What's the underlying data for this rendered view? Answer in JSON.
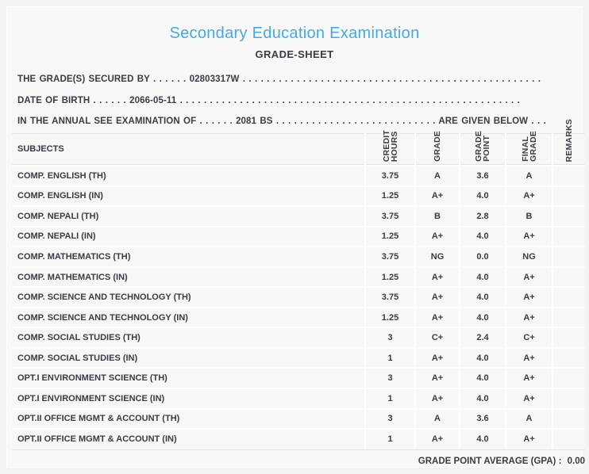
{
  "colors": {
    "accent_title": "#44AAE2",
    "text": "#3B3B42",
    "sheet_background": "#F8F8F9",
    "divider": "#E3E3E4"
  },
  "header": {
    "title": "Secondary Education Examination",
    "subtitle": "GRADE-SHEET"
  },
  "info_lines": [
    {
      "prefix": "THE GRADE(S) SECURED BY",
      "dots_before": ". . . . . .",
      "value": "02803317W",
      "dots_after": ". . . . . . . . . . . . . . . . . . . . . . . . . . . . . . . . . . . . . . . . . . . . . . . . . .",
      "suffix": ""
    },
    {
      "prefix": "DATE OF BIRTH",
      "dots_before": ". . . . . .",
      "value": "2066-05-11",
      "dots_after": ". . . . . . . . . . . . . . . . . . . . . . . . . . . . . . . . . . . . . . . . . . . . . . . . . . . . . . . . .",
      "suffix": ""
    },
    {
      "prefix": "IN THE ANNUAL SEE EXAMINATION OF",
      "dots_before": ". . . . . .",
      "value": "2081 BS",
      "dots_after": ". . . . . . . . . . . . . . . . . . . . . . . . . . .",
      "suffix": "ARE GIVEN BELOW . . ."
    }
  ],
  "table": {
    "headers": {
      "subjects": "SUBJECTS",
      "credit_hours": "CREDIT\nHOURS",
      "grade": "GRADE",
      "grade_point": "GRADE\nPOINT",
      "final_grade": "FINAL\nGRADE",
      "remarks": "REMARKS"
    },
    "rows": [
      {
        "subject": "COMP. ENGLISH (TH)",
        "credit_hours": "3.75",
        "grade": "A",
        "grade_point": "3.6",
        "final_grade": "A",
        "remarks": ""
      },
      {
        "subject": "COMP. ENGLISH (IN)",
        "credit_hours": "1.25",
        "grade": "A+",
        "grade_point": "4.0",
        "final_grade": "A+",
        "remarks": ""
      },
      {
        "subject": "COMP. NEPALI (TH)",
        "credit_hours": "3.75",
        "grade": "B",
        "grade_point": "2.8",
        "final_grade": "B",
        "remarks": ""
      },
      {
        "subject": "COMP. NEPALI (IN)",
        "credit_hours": "1.25",
        "grade": "A+",
        "grade_point": "4.0",
        "final_grade": "A+",
        "remarks": ""
      },
      {
        "subject": "COMP. MATHEMATICS (TH)",
        "credit_hours": "3.75",
        "grade": "NG",
        "grade_point": "0.0",
        "final_grade": "NG",
        "remarks": ""
      },
      {
        "subject": "COMP. MATHEMATICS (IN)",
        "credit_hours": "1.25",
        "grade": "A+",
        "grade_point": "4.0",
        "final_grade": "A+",
        "remarks": ""
      },
      {
        "subject": "COMP. SCIENCE AND TECHNOLOGY (TH)",
        "credit_hours": "3.75",
        "grade": "A+",
        "grade_point": "4.0",
        "final_grade": "A+",
        "remarks": ""
      },
      {
        "subject": "COMP. SCIENCE AND TECHNOLOGY (IN)",
        "credit_hours": "1.25",
        "grade": "A+",
        "grade_point": "4.0",
        "final_grade": "A+",
        "remarks": ""
      },
      {
        "subject": "COMP. SOCIAL STUDIES (TH)",
        "credit_hours": "3",
        "grade": "C+",
        "grade_point": "2.4",
        "final_grade": "C+",
        "remarks": ""
      },
      {
        "subject": "COMP. SOCIAL STUDIES (IN)",
        "credit_hours": "1",
        "grade": "A+",
        "grade_point": "4.0",
        "final_grade": "A+",
        "remarks": ""
      },
      {
        "subject": "OPT.I ENVIRONMENT SCIENCE (TH)",
        "credit_hours": "3",
        "grade": "A+",
        "grade_point": "4.0",
        "final_grade": "A+",
        "remarks": ""
      },
      {
        "subject": "OPT.I ENVIRONMENT SCIENCE (IN)",
        "credit_hours": "1",
        "grade": "A+",
        "grade_point": "4.0",
        "final_grade": "A+",
        "remarks": ""
      },
      {
        "subject": "OPT.II OFFICE MGMT & ACCOUNT (TH)",
        "credit_hours": "3",
        "grade": "A",
        "grade_point": "3.6",
        "final_grade": "A",
        "remarks": ""
      },
      {
        "subject": "OPT.II OFFICE MGMT & ACCOUNT (IN)",
        "credit_hours": "1",
        "grade": "A+",
        "grade_point": "4.0",
        "final_grade": "A+",
        "remarks": ""
      }
    ]
  },
  "footer": {
    "gpa_label": "GRADE POINT AVERAGE (GPA) :",
    "gpa_value": "0.00"
  }
}
